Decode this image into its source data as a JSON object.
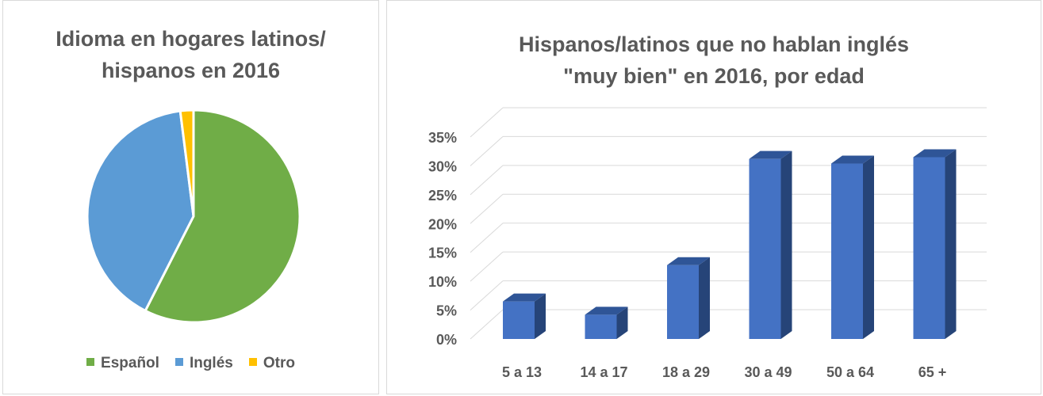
{
  "pie_panel": {
    "title": "Idioma en hogares latinos/ hispanos en 2016"
  },
  "bar_panel": {
    "title": "Hispanos/latinos que no hablan inglés \"muy bien\" en 2016, por edad"
  },
  "colors": {
    "espanol": "#70ad47",
    "ingles": "#5b9bd5",
    "otro": "#ffc000",
    "bar_front": "#4472c4",
    "bar_top": "#2f5597",
    "bar_side": "#264478",
    "grid": "#d9d9d9",
    "text": "#595959"
  },
  "chart_data": [
    {
      "type": "pie",
      "title": "Idioma en hogares latinos/ hispanos en 2016",
      "slices": [
        {
          "label": "Español",
          "value": 57.5
        },
        {
          "label": "Inglés",
          "value": 40.5
        },
        {
          "label": "Otro",
          "value": 2.0
        }
      ],
      "legend": "bottom"
    },
    {
      "type": "bar",
      "title": "Hispanos/latinos que no hablan inglés \"muy bien\" en 2016, por edad",
      "categories": [
        "5 a 13",
        "14 a 17",
        "18 a 29",
        "30 a 49",
        "50 a 64",
        "65 +"
      ],
      "values": [
        6.5,
        4.2,
        12.8,
        31.2,
        30.4,
        31.5
      ],
      "ylim": [
        0,
        35
      ],
      "yticks": [
        "0%",
        "5%",
        "10%",
        "15%",
        "20%",
        "25%",
        "30%",
        "35%"
      ],
      "grid": true
    }
  ]
}
